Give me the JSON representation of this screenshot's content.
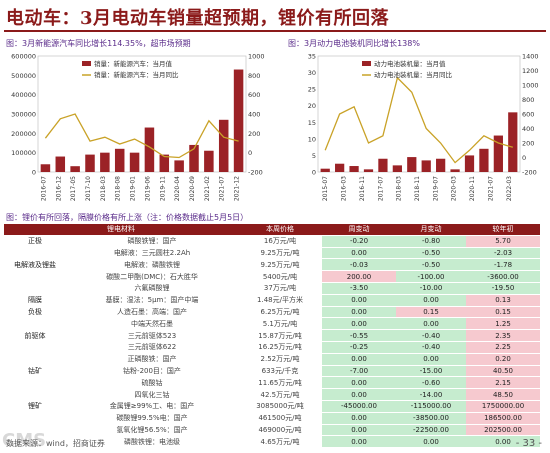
{
  "header": {
    "title": "电动车：3月电动车销量超预期，锂价有所回落"
  },
  "chart_data": [
    {
      "type": "bar",
      "title": "图：3月新能源汽车同比增长114.35%，超市场预期",
      "x": [
        "2016-07",
        "2016-12",
        "2017-05",
        "2017-10",
        "2018-03",
        "2018-08",
        "2019-01",
        "2019-06",
        "2019-11",
        "2020-04",
        "2020-09",
        "2021-02",
        "2021-07",
        "2021-12"
      ],
      "series": [
        {
          "name": "销量：新能源汽车：当月值",
          "values": [
            40000,
            80000,
            30000,
            90000,
            100000,
            120000,
            100000,
            230000,
            90000,
            60000,
            140000,
            110000,
            270000,
            530000
          ]
        },
        {
          "name": "销量：新能源汽车：当月同比",
          "values": [
            150,
            350,
            400,
            120,
            160,
            90,
            140,
            60,
            -40,
            -50,
            40,
            330,
            160,
            120
          ]
        }
      ],
      "y_left_ticks": [
        "0",
        "100000",
        "200000",
        "300000",
        "400000",
        "500000",
        "600000"
      ],
      "y_right_ticks": [
        "-200",
        "0",
        "200",
        "400",
        "600",
        "800",
        "1000"
      ],
      "ylim_left": [
        0,
        600000
      ],
      "ylim_right": [
        -200,
        1000
      ]
    },
    {
      "type": "bar",
      "title": "图：3月动力电池装机同比增长138%",
      "x": [
        "2015-07",
        "2016-01",
        "2016-07",
        "2017-01",
        "2017-07",
        "2018-01",
        "2018-07",
        "2019-01",
        "2019-07",
        "2020-01",
        "2020-07",
        "2021-01",
        "2021-07",
        "2022-01"
      ],
      "x_ticks": [
        "2015-07",
        "2016-03",
        "2016-11",
        "2017-07",
        "2018-03",
        "2018-11",
        "2019-07",
        "2020-03",
        "2020-11",
        "2021-07",
        "2022-03"
      ],
      "series": [
        {
          "name": "动力电池装机量：当月值",
          "values": [
            1.0,
            2.5,
            1.8,
            0.8,
            4.0,
            2.0,
            4.5,
            3.5,
            4.0,
            0.8,
            5.0,
            7.0,
            11.0,
            18.0
          ]
        },
        {
          "name": "动力电池装机量：当月同比",
          "values": [
            100,
            600,
            700,
            200,
            300,
            1100,
            900,
            400,
            200,
            -70,
            100,
            300,
            200,
            140
          ]
        }
      ],
      "y_left_ticks": [
        "0",
        "5",
        "10",
        "15",
        "20",
        "25",
        "30",
        "35"
      ],
      "y_right_ticks": [
        "-200",
        "0",
        "200",
        "400",
        "600",
        "800",
        "1000",
        "1200",
        "1400"
      ],
      "ylim_left": [
        0,
        35
      ],
      "ylim_right": [
        -200,
        1400
      ]
    }
  ],
  "table": {
    "caption": "图：锂价有所回落，隔膜价格有所上涨（注：价格数据截止5月5日）",
    "headers": [
      "锂电材料",
      "本周价格",
      "周变动",
      "月变动",
      "较年初"
    ],
    "rows": [
      {
        "cat": "正极",
        "name": "磷酸铁锂：国产",
        "price": "16万元/吨",
        "w": "-0.20",
        "wc": "g",
        "m": "-0.80",
        "mc": "g",
        "y": "5.70",
        "yc": "r"
      },
      {
        "cat": "",
        "name": "电解液：三元圆柱2.2Ah",
        "price": "9.25万元/吨",
        "w": "0.00",
        "wc": "g",
        "m": "-0.50",
        "mc": "g",
        "y": "-2.03",
        "yc": "g"
      },
      {
        "cat": "电解液及锂盐",
        "name": "电解液：磷酸铁锂",
        "price": "9.25万元/吨",
        "w": "-0.03",
        "wc": "g",
        "m": "-0.50",
        "mc": "g",
        "y": "-1.78",
        "yc": "g"
      },
      {
        "cat": "",
        "name": "碳酸二甲酯(DMC)：石大胜华",
        "price": "5400元/吨",
        "w": "200.00",
        "wc": "r",
        "m": "-100.00",
        "mc": "g",
        "y": "-3600.00",
        "yc": "g"
      },
      {
        "cat": "",
        "name": "六氟磷酸锂",
        "price": "37万元/吨",
        "w": "-3.50",
        "wc": "g",
        "m": "-10.00",
        "mc": "g",
        "y": "-19.50",
        "yc": "g"
      },
      {
        "cat": "隔膜",
        "name": "基膜：湿法：5μm：国产中端",
        "price": "1.48元/平方米",
        "w": "0.00",
        "wc": "g",
        "m": "0.00",
        "mc": "g",
        "y": "0.13",
        "yc": "r"
      },
      {
        "cat": "负极",
        "name": "人造石墨：高端：国产",
        "price": "6.25万元/吨",
        "w": "0.00",
        "wc": "g",
        "m": "0.15",
        "mc": "r",
        "y": "0.15",
        "yc": "r"
      },
      {
        "cat": "",
        "name": "中端天然石墨",
        "price": "5.1万元/吨",
        "w": "0.00",
        "wc": "g",
        "m": "0.00",
        "mc": "g",
        "y": "1.25",
        "yc": "r"
      },
      {
        "cat": "前驱体",
        "name": "三元前驱体523",
        "price": "15.87万元/吨",
        "w": "-0.55",
        "wc": "g",
        "m": "-0.40",
        "mc": "g",
        "y": "2.35",
        "yc": "r"
      },
      {
        "cat": "",
        "name": "三元前驱体622",
        "price": "16.25万元/吨",
        "w": "-0.25",
        "wc": "g",
        "m": "-0.40",
        "mc": "g",
        "y": "2.25",
        "yc": "r"
      },
      {
        "cat": "",
        "name": "正磷酸铁：国产",
        "price": "2.52万元/吨",
        "w": "0.00",
        "wc": "g",
        "m": "0.00",
        "mc": "g",
        "y": "0.20",
        "yc": "r"
      },
      {
        "cat": "钴矿",
        "name": "钴粉-200目：国产",
        "price": "633元/千克",
        "w": "-7.00",
        "wc": "g",
        "m": "-15.00",
        "mc": "g",
        "y": "40.50",
        "yc": "r"
      },
      {
        "cat": "",
        "name": "硫酸钴",
        "price": "11.65万元/吨",
        "w": "0.00",
        "wc": "g",
        "m": "-0.60",
        "mc": "g",
        "y": "2.15",
        "yc": "r"
      },
      {
        "cat": "",
        "name": "四氧化三钴",
        "price": "42.5万元/吨",
        "w": "0.00",
        "wc": "g",
        "m": "-14.00",
        "mc": "g",
        "y": "48.50",
        "yc": "r"
      },
      {
        "cat": "锂矿",
        "name": "金属锂≥99%工、电：国产",
        "price": "3085000元/吨",
        "w": "-45000.00",
        "wc": "g",
        "m": "-115000.00",
        "mc": "g",
        "y": "1750000.00",
        "yc": "r"
      },
      {
        "cat": "",
        "name": "碳酸锂99.5%电：国产",
        "price": "461500元/吨",
        "w": "0.00",
        "wc": "g",
        "m": "-38500.00",
        "mc": "g",
        "y": "186500.00",
        "yc": "r"
      },
      {
        "cat": "",
        "name": "氢氧化锂56.5%：国产",
        "price": "469000元/吨",
        "w": "0.00",
        "wc": "g",
        "m": "-22500.00",
        "mc": "g",
        "y": "202500.00",
        "yc": "r"
      },
      {
        "cat": "",
        "name": "磷酸铁锂：电池级",
        "price": "4.65万元/吨",
        "w": "0.00",
        "wc": "g",
        "m": "0.00",
        "mc": "g",
        "y": "0.00",
        "yc": "g"
      }
    ]
  },
  "footer": {
    "source": "数据来源：wind，招商证券",
    "page": "- 33 -",
    "logo": "CMS"
  }
}
